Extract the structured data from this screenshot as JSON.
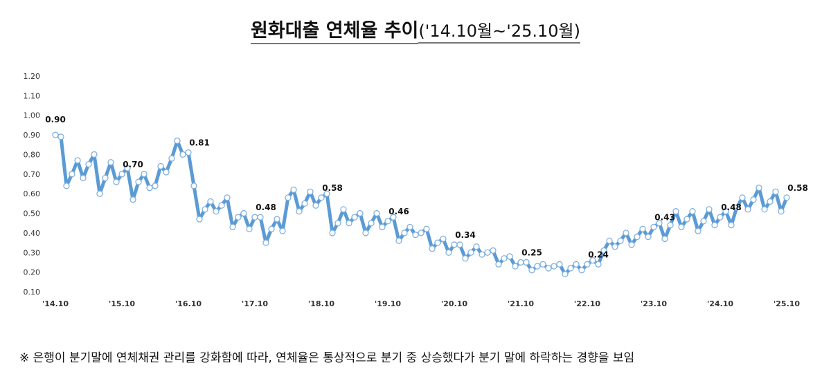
{
  "title": {
    "main": "원화대출 연체율 추이",
    "range": "('14.10월~'25.10월)"
  },
  "footnote": "※ 은행이 분기말에 연체채권 관리를 강화함에 따라, 연체율은 통상적으로 분기 중 상승했다가 분기 말에 하락하는 경향을 보임",
  "chart_data": {
    "type": "line",
    "title": "원화대출 연체율 추이('14.10월~'25.10월)",
    "xlabel": "",
    "ylabel": "",
    "x_start": "2014-10",
    "x_end": "2025-10",
    "frequency": "monthly",
    "x_ticks": [
      "'14.10",
      "'15.10",
      "'16.10",
      "'17.10",
      "'18.10",
      "'19.10",
      "'20.10",
      "'21.10",
      "'22.10",
      "'23.10",
      "'24.10",
      "'25.10"
    ],
    "y_ticks": [
      "0.10",
      "0.20",
      "0.30",
      "0.40",
      "0.50",
      "0.60",
      "0.70",
      "0.80",
      "0.90",
      "1.00",
      "1.10",
      "1.20"
    ],
    "ylim": [
      0.1,
      1.2
    ],
    "grid": false,
    "line_color": "#5b9bd5",
    "marker": "open-circle",
    "values": [
      0.9,
      0.89,
      0.64,
      0.7,
      0.77,
      0.68,
      0.75,
      0.8,
      0.6,
      0.68,
      0.76,
      0.66,
      0.7,
      0.73,
      0.57,
      0.66,
      0.7,
      0.63,
      0.64,
      0.74,
      0.71,
      0.78,
      0.87,
      0.8,
      0.81,
      0.64,
      0.47,
      0.52,
      0.56,
      0.51,
      0.54,
      0.58,
      0.43,
      0.48,
      0.5,
      0.42,
      0.48,
      0.48,
      0.35,
      0.42,
      0.47,
      0.41,
      0.58,
      0.62,
      0.51,
      0.55,
      0.61,
      0.54,
      0.58,
      0.6,
      0.4,
      0.45,
      0.52,
      0.45,
      0.48,
      0.5,
      0.4,
      0.45,
      0.5,
      0.43,
      0.46,
      0.48,
      0.36,
      0.4,
      0.43,
      0.39,
      0.4,
      0.42,
      0.32,
      0.35,
      0.37,
      0.3,
      0.34,
      0.34,
      0.27,
      0.3,
      0.33,
      0.29,
      0.3,
      0.31,
      0.24,
      0.27,
      0.28,
      0.23,
      0.25,
      0.25,
      0.21,
      0.23,
      0.24,
      0.22,
      0.23,
      0.24,
      0.19,
      0.22,
      0.24,
      0.21,
      0.24,
      0.26,
      0.24,
      0.31,
      0.36,
      0.33,
      0.36,
      0.4,
      0.34,
      0.38,
      0.42,
      0.38,
      0.43,
      0.45,
      0.37,
      0.44,
      0.51,
      0.43,
      0.47,
      0.51,
      0.41,
      0.46,
      0.52,
      0.44,
      0.48,
      0.51,
      0.44,
      0.53,
      0.58,
      0.52,
      0.57,
      0.63,
      0.52,
      0.56,
      0.61,
      0.51,
      0.58
    ],
    "data_labels": [
      {
        "x": "2014-10",
        "label": "0.90"
      },
      {
        "x": "2015-10",
        "label": "0.70"
      },
      {
        "x": "2016-10",
        "label": "0.81"
      },
      {
        "x": "2017-10",
        "label": "0.48"
      },
      {
        "x": "2018-10",
        "label": "0.58"
      },
      {
        "x": "2019-10",
        "label": "0.46"
      },
      {
        "x": "2020-10",
        "label": "0.34"
      },
      {
        "x": "2021-10",
        "label": "0.25"
      },
      {
        "x": "2022-10",
        "label": "0.24"
      },
      {
        "x": "2023-10",
        "label": "0.43"
      },
      {
        "x": "2024-10",
        "label": "0.48"
      },
      {
        "x": "2025-10",
        "label": "0.58"
      }
    ]
  }
}
